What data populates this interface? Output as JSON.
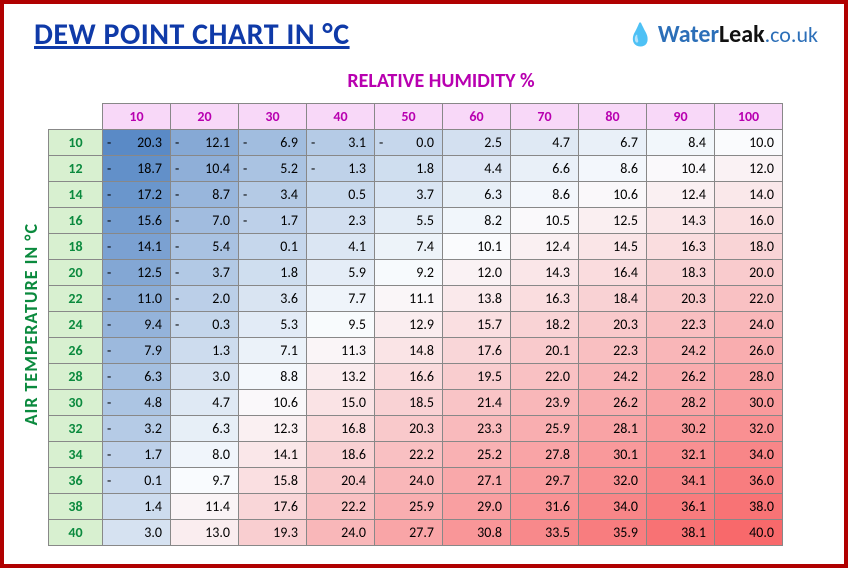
{
  "title": "DEW POINT CHART IN °C",
  "logo": {
    "brand1": "Water",
    "brand2": "Leak",
    "tld": ".co.uk"
  },
  "x_label": "RELATIVE HUMIDITY %",
  "y_label": "AIR TEMPERATURE IN °C",
  "humidity_cols": [
    10,
    20,
    30,
    40,
    50,
    60,
    70,
    80,
    90,
    100
  ],
  "temp_rows": [
    10,
    12,
    14,
    16,
    18,
    20,
    22,
    24,
    26,
    28,
    30,
    32,
    34,
    36,
    38,
    40
  ],
  "data": [
    [
      -20.3,
      -12.1,
      -6.9,
      -3.1,
      0.0,
      2.5,
      4.7,
      6.7,
      8.4,
      10.0
    ],
    [
      -18.7,
      -10.4,
      -5.2,
      -1.3,
      1.8,
      4.4,
      6.6,
      8.6,
      10.4,
      12.0
    ],
    [
      -17.2,
      -8.7,
      -3.4,
      0.5,
      3.7,
      6.3,
      8.6,
      10.6,
      12.4,
      14.0
    ],
    [
      -15.6,
      -7.0,
      -1.7,
      2.3,
      5.5,
      8.2,
      10.5,
      12.5,
      14.3,
      16.0
    ],
    [
      -14.1,
      -5.4,
      0.1,
      4.1,
      7.4,
      10.1,
      12.4,
      14.5,
      16.3,
      18.0
    ],
    [
      -12.5,
      -3.7,
      1.8,
      5.9,
      9.2,
      12.0,
      14.3,
      16.4,
      18.3,
      20.0
    ],
    [
      -11.0,
      -2.0,
      3.6,
      7.7,
      11.1,
      13.8,
      16.3,
      18.4,
      20.3,
      22.0
    ],
    [
      -9.4,
      -0.3,
      5.3,
      9.5,
      12.9,
      15.7,
      18.2,
      20.3,
      22.3,
      24.0
    ],
    [
      -7.9,
      1.3,
      7.1,
      11.3,
      14.8,
      17.6,
      20.1,
      22.3,
      24.2,
      26.0
    ],
    [
      -6.3,
      3.0,
      8.8,
      13.2,
      16.6,
      19.5,
      22.0,
      24.2,
      26.2,
      28.0
    ],
    [
      -4.8,
      4.7,
      10.6,
      15.0,
      18.5,
      21.4,
      23.9,
      26.2,
      28.2,
      30.0
    ],
    [
      -3.2,
      6.3,
      12.3,
      16.8,
      20.3,
      23.3,
      25.9,
      28.1,
      30.2,
      32.0
    ],
    [
      -1.7,
      8.0,
      14.1,
      18.6,
      22.2,
      25.2,
      27.8,
      30.1,
      32.1,
      34.0
    ],
    [
      -0.1,
      9.7,
      15.8,
      20.4,
      24.0,
      27.1,
      29.7,
      32.0,
      34.1,
      36.0
    ],
    [
      1.4,
      11.4,
      17.6,
      22.2,
      25.9,
      29.0,
      31.6,
      34.0,
      36.1,
      38.0
    ],
    [
      3.0,
      13.0,
      19.3,
      24.0,
      27.7,
      30.8,
      33.5,
      35.9,
      38.1,
      40.0
    ]
  ],
  "colors": {
    "title": "#0f3aa8",
    "border": "#b00000",
    "humidity_header_bg": "#f8d8f8",
    "humidity_text": "#b800b0",
    "temp_header_bg": "#d8f0d0",
    "temp_text": "#0b8a3e",
    "cold": "#5a8ac6",
    "mid": "#fafcfe",
    "hot": "#f8696b",
    "grid": "#888888"
  },
  "scale": {
    "min": -20.3,
    "max": 40.0
  },
  "typography": {
    "title_size": 30,
    "header_size": 14,
    "cell_size": 14
  }
}
